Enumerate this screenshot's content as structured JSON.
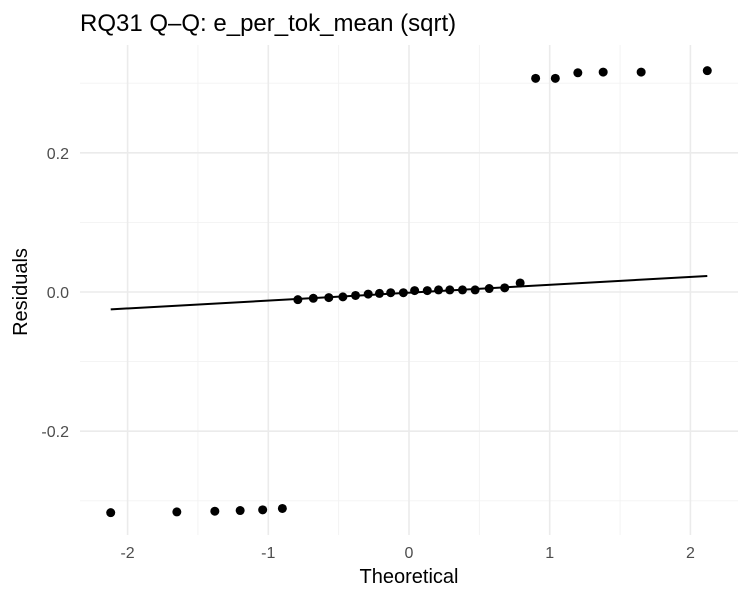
{
  "chart_data": {
    "type": "scatter",
    "title": "RQ31 Q–Q: e_per_tok_mean (sqrt)",
    "xlabel": "Theoretical",
    "ylabel": "Residuals",
    "xlim": [
      -2.3,
      2.3
    ],
    "ylim": [
      -0.34,
      0.34
    ],
    "x_ticks": [
      -2,
      -1,
      0,
      1,
      2
    ],
    "x_tick_labels": [
      "-2",
      "-1",
      "0",
      "1",
      "2"
    ],
    "y_ticks": [
      -0.2,
      0.0,
      0.2
    ],
    "y_tick_labels": [
      "-0.2",
      "0.0",
      "0.2"
    ],
    "grid": true,
    "reference_line": {
      "x": [
        -2.12,
        2.12
      ],
      "y": [
        -0.025,
        0.023
      ]
    },
    "series": [
      {
        "name": "residuals",
        "points": [
          [
            -2.12,
            -0.317
          ],
          [
            -1.65,
            -0.316
          ],
          [
            -1.38,
            -0.315
          ],
          [
            -1.2,
            -0.314
          ],
          [
            -1.04,
            -0.313
          ],
          [
            -0.9,
            -0.311
          ],
          [
            -0.79,
            -0.011
          ],
          [
            -0.68,
            -0.009
          ],
          [
            -0.57,
            -0.008
          ],
          [
            -0.47,
            -0.007
          ],
          [
            -0.38,
            -0.005
          ],
          [
            -0.29,
            -0.003
          ],
          [
            -0.21,
            -0.002
          ],
          [
            -0.13,
            -0.001
          ],
          [
            -0.04,
            -0.001
          ],
          [
            0.04,
            0.002
          ],
          [
            0.13,
            0.002
          ],
          [
            0.21,
            0.003
          ],
          [
            0.29,
            0.003
          ],
          [
            0.38,
            0.003
          ],
          [
            0.47,
            0.003
          ],
          [
            0.57,
            0.005
          ],
          [
            0.68,
            0.006
          ],
          [
            0.79,
            0.013
          ],
          [
            0.9,
            0.307
          ],
          [
            1.04,
            0.307
          ],
          [
            1.2,
            0.315
          ],
          [
            1.38,
            0.316
          ],
          [
            1.65,
            0.316
          ],
          [
            2.12,
            0.318
          ]
        ]
      }
    ]
  }
}
